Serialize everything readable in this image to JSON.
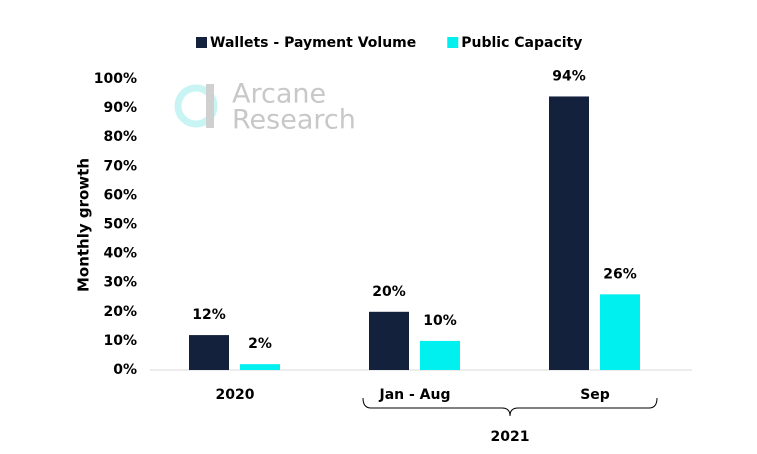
{
  "chart_data": {
    "type": "bar",
    "y_label": "Monthly growth",
    "watermark": [
      "Arcane",
      "Research"
    ],
    "categories": [
      "2020",
      "Jan - Aug",
      "Sep"
    ],
    "group_label": "2021",
    "series": [
      {
        "name": "Wallets - Payment Volume",
        "color": "#14213d",
        "values": [
          12,
          20,
          94
        ],
        "value_labels": [
          "12%",
          "20%",
          "94%"
        ]
      },
      {
        "name": "Public Capacity",
        "color": "#00f0f0",
        "values": [
          2,
          10,
          26
        ],
        "value_labels": [
          "2%",
          "10%",
          "26%"
        ]
      }
    ],
    "ylim": [
      0,
      100
    ],
    "yticks": [
      {
        "value": 0,
        "label": "0%"
      },
      {
        "value": 10,
        "label": "10%"
      },
      {
        "value": 20,
        "label": "20%"
      },
      {
        "value": 30,
        "label": "30%"
      },
      {
        "value": 40,
        "label": "40%"
      },
      {
        "value": 50,
        "label": "50%"
      },
      {
        "value": 60,
        "label": "60%"
      },
      {
        "value": 70,
        "label": "70%"
      },
      {
        "value": 80,
        "label": "80%"
      },
      {
        "value": 90,
        "label": "90%"
      },
      {
        "value": 100,
        "label": "100%"
      }
    ],
    "grid": false
  }
}
